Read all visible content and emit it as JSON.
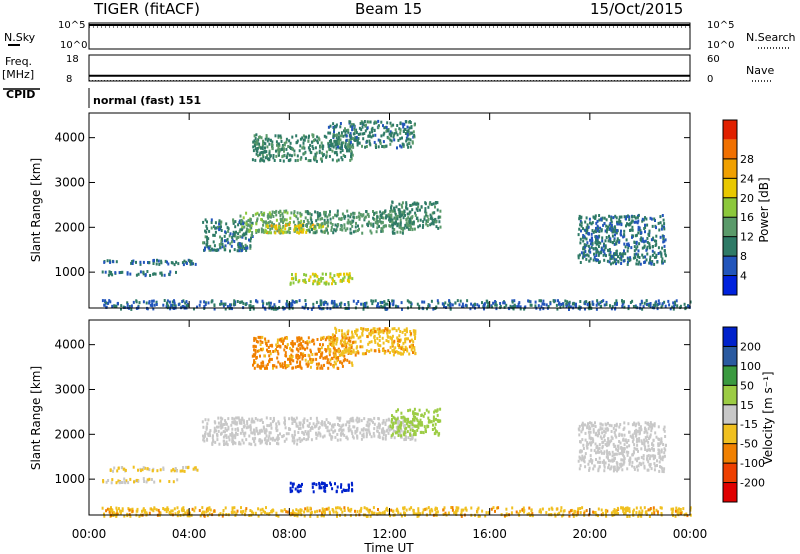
{
  "header": {
    "radar": "TIGER (fitACF)",
    "beam": "Beam 15",
    "date": "15/Oct/2015"
  },
  "strips": {
    "nsky_label": "N.Sky",
    "nsearch_label": "N.Search",
    "freq_label": "Freq.",
    "freq_unit": "[MHz]",
    "nave_label": "Nave",
    "cpid_label": "CPID",
    "cpid_value": "normal (fast) 151",
    "noise_ticks_left": [
      "10^5",
      "10^0"
    ],
    "noise_ticks_right": [
      "10^5",
      "10^0"
    ],
    "freq_ticks": [
      "18",
      "8"
    ],
    "nave_ticks": [
      "60",
      "0"
    ],
    "freq_value": 10,
    "nave_value": 1
  },
  "colors": {
    "power_scale": [
      "#0022dd",
      "#2255bb",
      "#2e7a66",
      "#5a9a6a",
      "#8cc83c",
      "#e8c800",
      "#f0a000",
      "#f07000",
      "#e02000"
    ],
    "velocity_scale": [
      "#e00000",
      "#ee4000",
      "#f08000",
      "#f0c020",
      "#c8c8c8",
      "#9ccc44",
      "#3a9a40",
      "#2a5aa0",
      "#0022cc"
    ]
  },
  "chart_data": [
    {
      "type": "heatmap",
      "name": "power",
      "ylabel": "Slant Range [km]",
      "yticks": [
        1000,
        2000,
        3000,
        4000
      ],
      "ylim": [
        200,
        4550
      ],
      "xlim_hours": [
        0,
        24
      ],
      "xticks": [
        "00:00",
        "04:00",
        "08:00",
        "12:00",
        "16:00",
        "20:00",
        "00:00"
      ],
      "colorbar": {
        "label": "Power [dB]",
        "range": [
          0,
          32
        ],
        "ticks": [
          4,
          8,
          12,
          16,
          20,
          24,
          28
        ]
      },
      "regions": [
        {
          "t": [
            0.5,
            24
          ],
          "r": [
            200,
            400
          ],
          "value": 8
        },
        {
          "t": [
            0.5,
            4.5
          ],
          "r": [
            1200,
            1300
          ],
          "value": 9
        },
        {
          "t": [
            0.5,
            3.5
          ],
          "r": [
            950,
            1050
          ],
          "value": 9
        },
        {
          "t": [
            4.5,
            6.5
          ],
          "r": [
            1500,
            2200
          ],
          "value": 10
        },
        {
          "t": [
            6.0,
            8.5
          ],
          "r": [
            1900,
            2400
          ],
          "value": 15
        },
        {
          "t": [
            7.0,
            9.5
          ],
          "r": [
            1900,
            2100
          ],
          "value": 22
        },
        {
          "t": [
            8.5,
            13.0
          ],
          "r": [
            1900,
            2400
          ],
          "value": 13
        },
        {
          "t": [
            12.0,
            14.0
          ],
          "r": [
            2000,
            2600
          ],
          "value": 11
        },
        {
          "t": [
            8.0,
            10.5
          ],
          "r": [
            750,
            1000
          ],
          "value": 19
        },
        {
          "t": [
            6.5,
            10.5
          ],
          "r": [
            3500,
            4100
          ],
          "value": 11
        },
        {
          "t": [
            9.5,
            13.0
          ],
          "r": [
            3800,
            4400
          ],
          "value": 10
        },
        {
          "t": [
            19.5,
            23.0
          ],
          "r": [
            1200,
            2300
          ],
          "value": 9
        }
      ]
    },
    {
      "type": "heatmap",
      "name": "velocity",
      "ylabel": "Slant Range [km]",
      "yticks": [
        1000,
        2000,
        3000,
        4000
      ],
      "ylim": [
        200,
        4550
      ],
      "xlim_hours": [
        0,
        24
      ],
      "xticks": [
        "00:00",
        "04:00",
        "08:00",
        "12:00",
        "16:00",
        "20:00",
        "00:00"
      ],
      "xlabel": "Time UT",
      "colorbar": {
        "label": "Velocity [m s⁻¹]",
        "ticks": [
          200,
          100,
          50,
          15,
          -15,
          -50,
          -100,
          -200
        ]
      },
      "regions": [
        {
          "t": [
            0.5,
            24
          ],
          "r": [
            200,
            400
          ],
          "value": -40
        },
        {
          "t": [
            0.5,
            4.5
          ],
          "r": [
            1200,
            1300
          ],
          "value": -20
        },
        {
          "t": [
            0.5,
            3.5
          ],
          "r": [
            950,
            1050
          ],
          "value": -15
        },
        {
          "t": [
            4.5,
            8.5
          ],
          "r": [
            1800,
            2400
          ],
          "value": 0
        },
        {
          "t": [
            8.5,
            13.0
          ],
          "r": [
            1900,
            2400
          ],
          "value": 0
        },
        {
          "t": [
            12.0,
            14.0
          ],
          "r": [
            2000,
            2600
          ],
          "value": 30
        },
        {
          "t": [
            8.0,
            10.5
          ],
          "r": [
            750,
            950
          ],
          "value": 220
        },
        {
          "t": [
            6.5,
            10.5
          ],
          "r": [
            3500,
            4200
          ],
          "value": -60
        },
        {
          "t": [
            9.5,
            13.0
          ],
          "r": [
            3800,
            4400
          ],
          "value": -40
        },
        {
          "t": [
            19.5,
            23.0
          ],
          "r": [
            1200,
            2300
          ],
          "value": 0
        }
      ]
    }
  ]
}
